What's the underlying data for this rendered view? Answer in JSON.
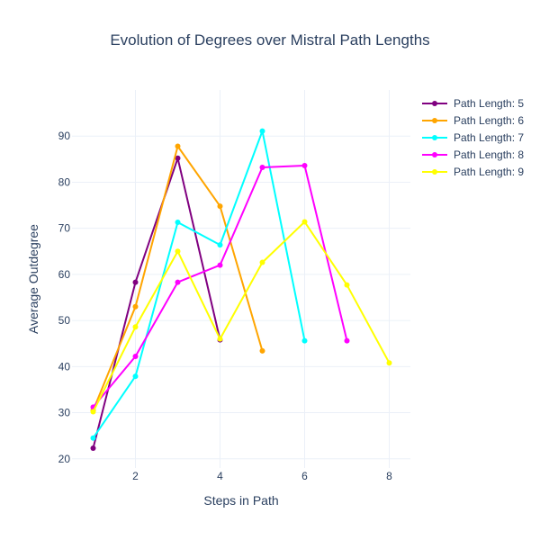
{
  "chart_data": {
    "type": "line",
    "title": "Evolution of Degrees over Mistral Path Lengths",
    "xlabel": "Steps in Path",
    "ylabel": "Average Outdegree",
    "xlim": [
      0.5,
      8.5
    ],
    "ylim": [
      18,
      100
    ],
    "xticks": [
      2,
      4,
      6,
      8
    ],
    "yticks": [
      20,
      30,
      40,
      50,
      60,
      70,
      80,
      90
    ],
    "grid": true,
    "legend_position": "top-right",
    "series": [
      {
        "name": "Path Length: 5",
        "color": "#800080",
        "x": [
          1,
          2,
          3,
          4
        ],
        "y": [
          22.3,
          58.3,
          85.2,
          45.8
        ]
      },
      {
        "name": "Path Length: 6",
        "color": "#FFA500",
        "x": [
          1,
          2,
          3,
          4,
          5
        ],
        "y": [
          30.5,
          53.0,
          87.8,
          74.8,
          43.4
        ]
      },
      {
        "name": "Path Length: 7",
        "color": "#00FFFF",
        "x": [
          1,
          2,
          3,
          4,
          5,
          6
        ],
        "y": [
          24.5,
          37.9,
          71.3,
          66.4,
          91.1,
          45.6
        ]
      },
      {
        "name": "Path Length: 8",
        "color": "#FF00FF",
        "x": [
          1,
          2,
          3,
          4,
          5,
          6,
          7
        ],
        "y": [
          31.2,
          42.2,
          58.3,
          62.0,
          83.2,
          83.6,
          45.6
        ]
      },
      {
        "name": "Path Length: 9",
        "color": "#FFFF00",
        "x": [
          1,
          2,
          3,
          4,
          5,
          6,
          7,
          8
        ],
        "y": [
          30.2,
          48.6,
          65.0,
          46.0,
          62.6,
          71.4,
          57.7,
          40.8
        ]
      }
    ]
  }
}
